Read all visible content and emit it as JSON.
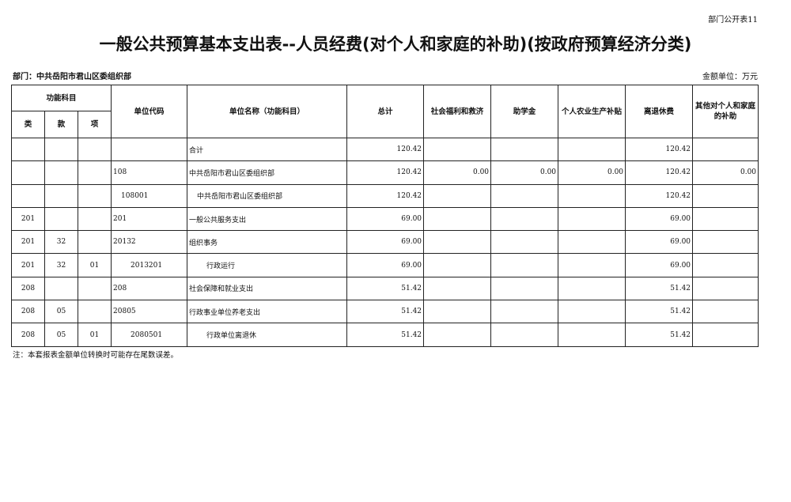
{
  "form_tag": "部门公开表11",
  "title": "一般公共预算基本支出表--人员经费(对个人和家庭的补助)(按政府预算经济分类)",
  "department": "部门：中共岳阳市君山区委组织部",
  "unit": "金额单位：万元",
  "headers": {
    "func": "功能科目",
    "lei": "类",
    "kuan": "款",
    "xiang": "项",
    "code": "单位代码",
    "name": "单位名称（功能科目）",
    "total": "总计",
    "c1": "社会福利和救济",
    "c2": "助学金",
    "c3": "个人农业生产补贴",
    "c4": "离退休费",
    "c5": "其他对个人和家庭的补助"
  },
  "rows": [
    {
      "lei": "",
      "kuan": "",
      "xiang": "",
      "code": "",
      "name": "合计",
      "total": "120.42",
      "c1": "",
      "c2": "",
      "c3": "",
      "c4": "120.42",
      "c5": "",
      "ind": 0
    },
    {
      "lei": "",
      "kuan": "",
      "xiang": "",
      "code": "108",
      "name": "中共岳阳市君山区委组织部",
      "total": "120.42",
      "c1": "0.00",
      "c2": "0.00",
      "c3": "0.00",
      "c4": "120.42",
      "c5": "0.00",
      "ind": 0
    },
    {
      "lei": "",
      "kuan": "",
      "xiang": "",
      "code": "108001",
      "name": "中共岳阳市君山区委组织部",
      "total": "120.42",
      "c1": "",
      "c2": "",
      "c3": "",
      "c4": "120.42",
      "c5": "",
      "ind": 1
    },
    {
      "lei": "201",
      "kuan": "",
      "xiang": "",
      "code": "201",
      "name": "一般公共服务支出",
      "total": "69.00",
      "c1": "",
      "c2": "",
      "c3": "",
      "c4": "69.00",
      "c5": "",
      "ind": 0
    },
    {
      "lei": "201",
      "kuan": "32",
      "xiang": "",
      "code": "20132",
      "name": "组织事务",
      "total": "69.00",
      "c1": "",
      "c2": "",
      "c3": "",
      "c4": "69.00",
      "c5": "",
      "ind": 0
    },
    {
      "lei": "201",
      "kuan": "32",
      "xiang": "01",
      "code": "2013201",
      "name": "行政运行",
      "total": "69.00",
      "c1": "",
      "c2": "",
      "c3": "",
      "c4": "69.00",
      "c5": "",
      "ind": 2
    },
    {
      "lei": "208",
      "kuan": "",
      "xiang": "",
      "code": "208",
      "name": "社会保障和就业支出",
      "total": "51.42",
      "c1": "",
      "c2": "",
      "c3": "",
      "c4": "51.42",
      "c5": "",
      "ind": 0
    },
    {
      "lei": "208",
      "kuan": "05",
      "xiang": "",
      "code": "20805",
      "name": "行政事业单位养老支出",
      "total": "51.42",
      "c1": "",
      "c2": "",
      "c3": "",
      "c4": "51.42",
      "c5": "",
      "ind": 0
    },
    {
      "lei": "208",
      "kuan": "05",
      "xiang": "01",
      "code": "2080501",
      "name": "行政单位离退休",
      "total": "51.42",
      "c1": "",
      "c2": "",
      "c3": "",
      "c4": "51.42",
      "c5": "",
      "ind": 2
    }
  ],
  "note": "注：本套报表金额单位转换时可能存在尾数误差。"
}
